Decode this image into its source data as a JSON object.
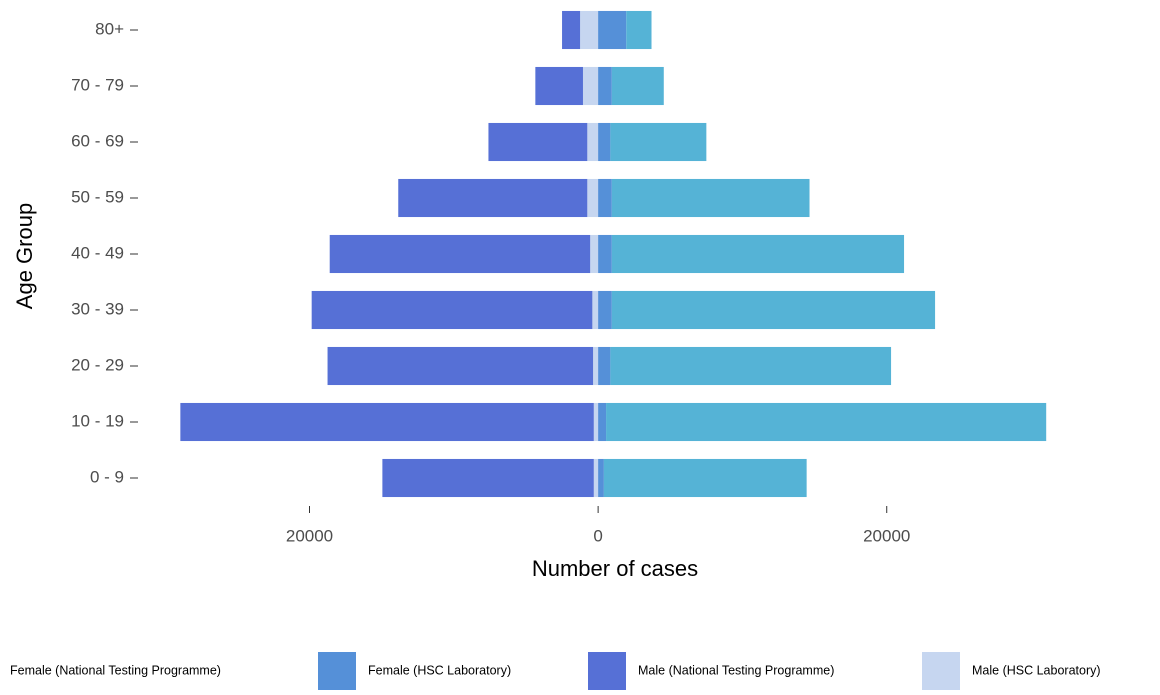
{
  "chart_data": {
    "type": "bar",
    "orientation": "horizontal",
    "stacked": true,
    "xlabel": "Number of cases",
    "ylabel": "Age Group",
    "categories": [
      "0 - 9",
      "10 - 19",
      "20 - 29",
      "30 - 39",
      "40 - 49",
      "50 - 59",
      "60 - 69",
      "70 - 79",
      "80+"
    ],
    "series": [
      {
        "name": "Female (National Testing Programme)",
        "color": "#55b3d6",
        "values": [
          14050,
          30500,
          19450,
          22400,
          20250,
          13700,
          6650,
          3600,
          1750
        ]
      },
      {
        "name": "Female (HSC Laboratory)",
        "color": "#5590d8",
        "values": [
          400,
          550,
          850,
          950,
          950,
          950,
          850,
          950,
          1950
        ]
      },
      {
        "name": "Male (National Testing Programme)",
        "color": "#5670d6",
        "values": [
          -14650,
          -28650,
          -18400,
          -19450,
          -18050,
          -13100,
          -6850,
          -3300,
          -1250
        ]
      },
      {
        "name": "Male (HSC Laboratory)",
        "color": "#c6d6f0",
        "values": [
          -300,
          -300,
          -350,
          -400,
          -550,
          -750,
          -750,
          -1050,
          -1250
        ]
      }
    ],
    "xlim": [
      -31400,
      32700
    ],
    "xticks": [
      {
        "value": -20000,
        "label": "20000"
      },
      0,
      20000
    ],
    "grid": false,
    "legend": "bottom"
  }
}
